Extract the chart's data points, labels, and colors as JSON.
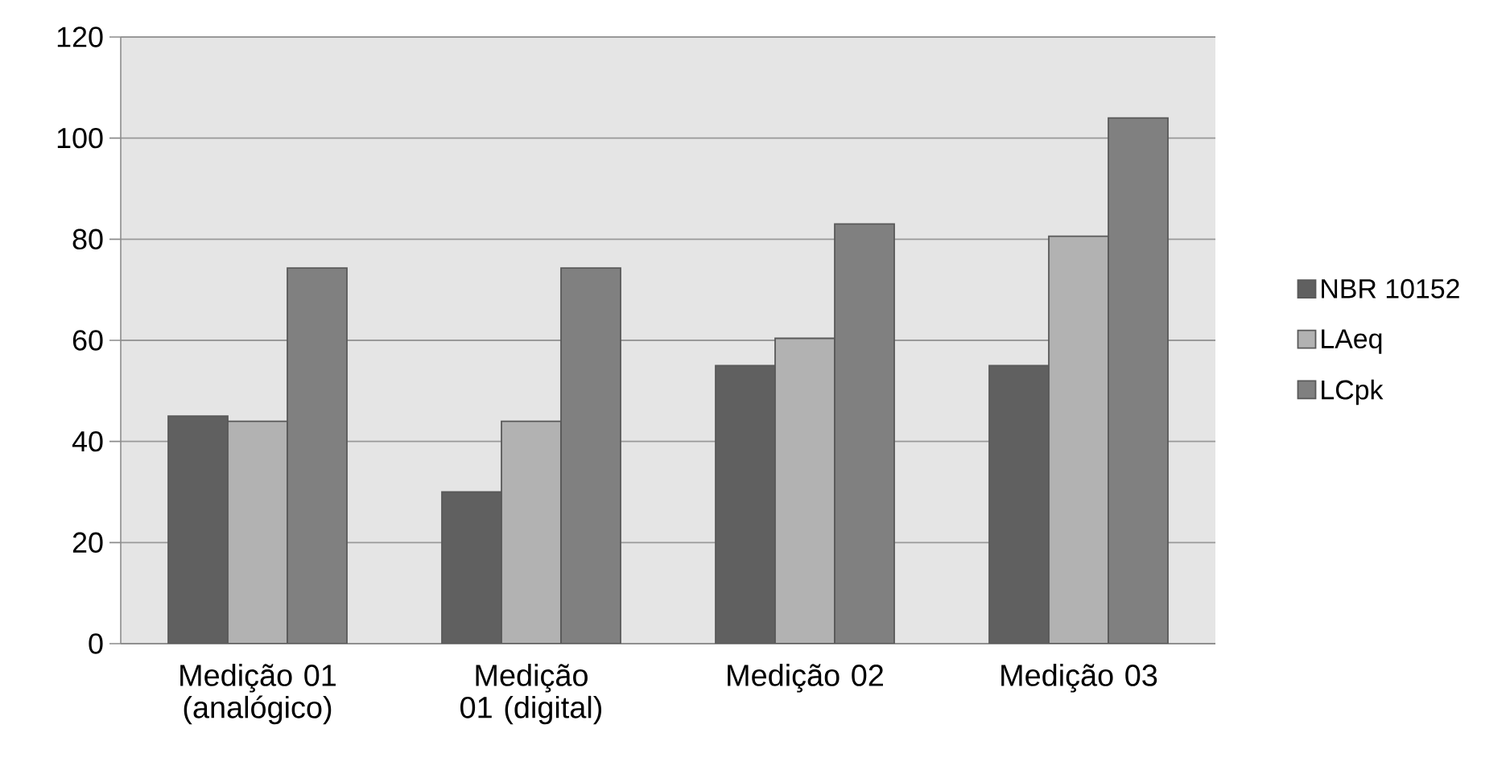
{
  "chart_data": {
    "type": "bar",
    "categories": [
      "Medição 01 (analógico)",
      "Medição 01 (digital)",
      "Medição 02",
      "Medição 03"
    ],
    "series": [
      {
        "name": "NBR 10152",
        "color": "#606060",
        "values": [
          45,
          30,
          55,
          55
        ]
      },
      {
        "name": "LAeq",
        "color": "#b2b2b2",
        "values": [
          44,
          44,
          60.4,
          80.6
        ]
      },
      {
        "name": "LCpk",
        "color": "#808080",
        "values": [
          74.3,
          74.3,
          83,
          104
        ]
      }
    ],
    "ylim": [
      0,
      120
    ],
    "yticks": [
      0,
      20,
      40,
      60,
      80,
      100,
      120
    ],
    "grid": "y",
    "legend": "right"
  }
}
